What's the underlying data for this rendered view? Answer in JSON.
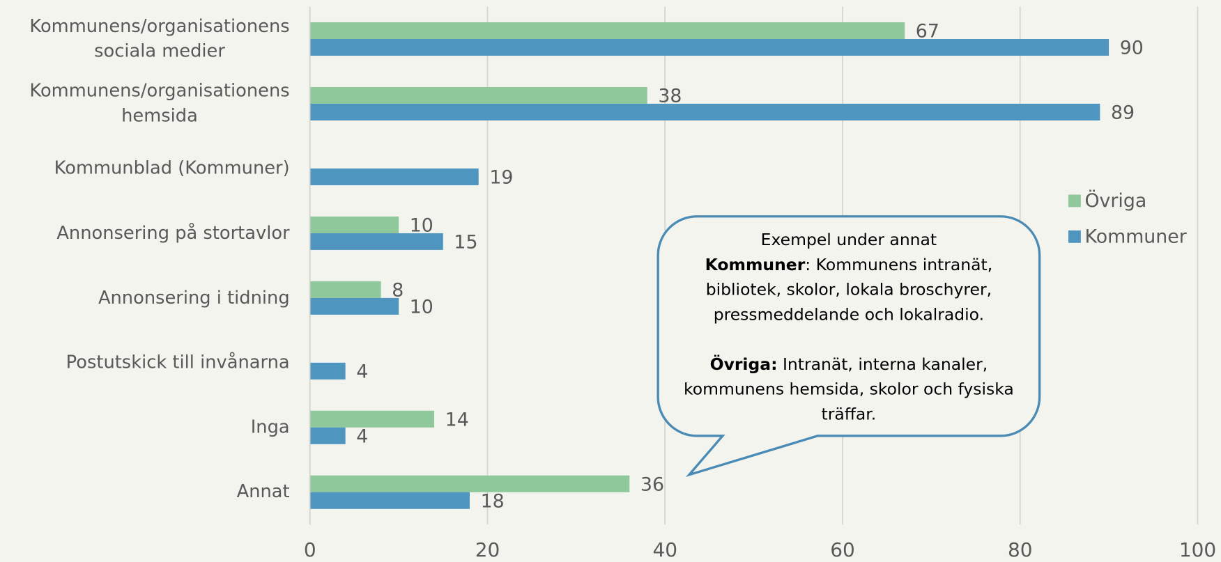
{
  "chart_data": {
    "type": "barh",
    "categories": [
      "Kommunens/organisationens\nsociala medier",
      "Kommunens/organisationens\nhemsida",
      "Kommunblad (Kommuner)",
      "Annonsering på stortavlor",
      "Annonsering i tidning",
      "Postutskick till invånarna",
      "Inga",
      "Annat"
    ],
    "series": [
      {
        "name": "Övriga",
        "color": "#8fc89a",
        "values": [
          67,
          38,
          null,
          10,
          8,
          null,
          14,
          36
        ]
      },
      {
        "name": "Kommuner",
        "color": "#4e95c0",
        "values": [
          90,
          89,
          19,
          15,
          10,
          4,
          4,
          18
        ]
      }
    ],
    "xlim": [
      0,
      100
    ],
    "xticks": [
      0,
      20,
      40,
      60,
      80,
      100
    ],
    "grid": true,
    "legend": "right",
    "annotation": {
      "title": "Exempel under annat",
      "paragraphs": [
        {
          "label": "Kommuner",
          "text": ": Kommunens intranät, bibliotek, skolor, lokala broschyrer, pressmeddelande och lokalradio."
        },
        {
          "label": "Övriga:",
          "text": " Intranät, interna kanaler, kommunens hemsida, skolor och fysiska träffar."
        }
      ]
    }
  }
}
